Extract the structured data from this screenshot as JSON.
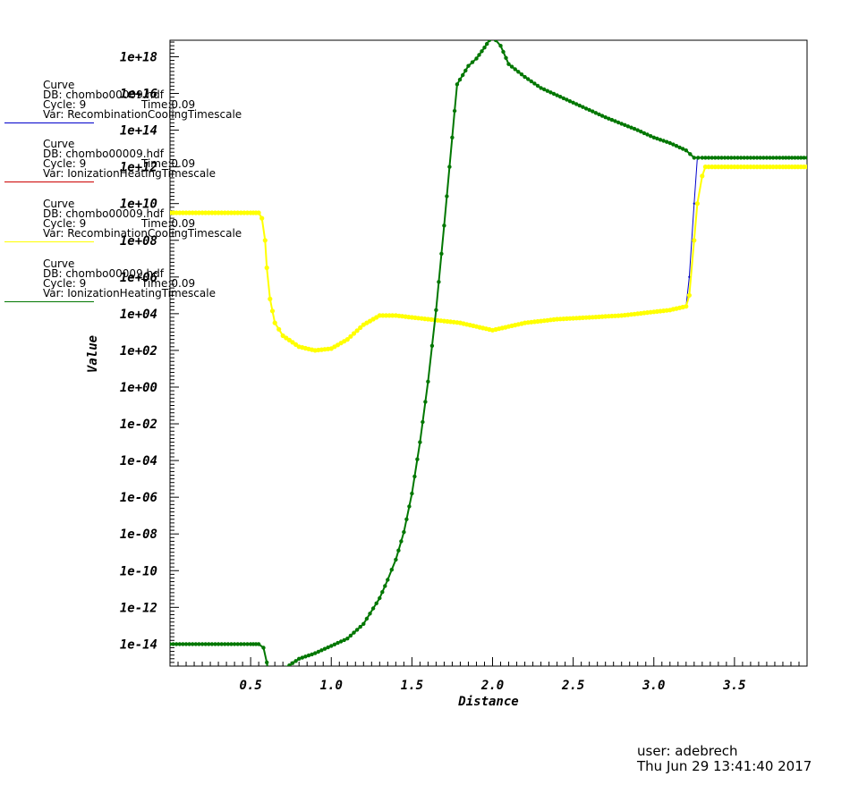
{
  "legend": [
    {
      "title": "Curve",
      "db": "DB: chombo00009.hdf",
      "cycle": "Cycle: 9",
      "time": "Time:0.09",
      "var": "Var: RecombinationCoolingTimescale",
      "color": "#0000cc"
    },
    {
      "title": "Curve",
      "db": "DB: chombo00009.hdf",
      "cycle": "Cycle: 9",
      "time": "Time:0.09",
      "var": "Var: IonizationHeatingTimescale",
      "color": "#cc0000"
    },
    {
      "title": "Curve",
      "db": "DB: chombo00009.hdf",
      "cycle": "Cycle: 9",
      "time": "Time:0.09",
      "var": "Var: RecombinationCoolingTimescale",
      "color": "#ffff00"
    },
    {
      "title": "Curve",
      "db": "DB: chombo00009.hdf",
      "cycle": "Cycle: 9",
      "time": "Time:0.09",
      "var": "Var: IonizationHeatingTimescale",
      "color": "#007700"
    }
  ],
  "footer": {
    "user": "user: adebrech",
    "date": "Thu Jun 29 13:41:40 2017"
  },
  "chart_data": {
    "type": "line",
    "xlabel": "Distance",
    "ylabel": "Value",
    "xlim": [
      0,
      3.95
    ],
    "ylim_log10": [
      -15.2,
      18.9
    ],
    "log_y": true,
    "xticks": [
      "0.5",
      "1.0",
      "1.5",
      "2.0",
      "2.5",
      "3.0",
      "3.5"
    ],
    "yticks": [
      "1e+18",
      "1e+16",
      "1e+14",
      "1e+12",
      "1e+10",
      "1e+08",
      "1e+06",
      "1e+04",
      "1e+02",
      "1e+00",
      "1e-02",
      "1e-04",
      "1e-06",
      "1e-08",
      "1e-10",
      "1e-12",
      "1e-14"
    ],
    "series": [
      {
        "name": "RecombinationCoolingTimescale",
        "color": "#0000cc",
        "x": [
          0.0,
          0.5,
          0.55,
          0.57,
          0.59,
          0.6,
          0.62,
          0.65,
          0.7,
          0.8,
          0.9,
          1.0,
          1.1,
          1.2,
          1.3,
          1.4,
          1.5,
          1.6,
          1.7,
          1.8,
          1.9,
          2.0,
          2.1,
          2.2,
          2.4,
          2.6,
          2.8,
          3.0,
          3.1,
          3.2,
          3.22,
          3.25,
          3.27,
          3.3,
          3.4,
          3.6,
          3.8,
          3.95
        ],
        "y": [
          9.5,
          9.5,
          9.5,
          9.2,
          8.0,
          6.5,
          4.8,
          3.5,
          2.8,
          2.2,
          2.0,
          2.1,
          2.6,
          3.4,
          3.9,
          3.9,
          3.8,
          3.7,
          3.6,
          3.5,
          3.3,
          3.1,
          3.3,
          3.5,
          3.7,
          3.8,
          3.9,
          4.1,
          4.2,
          4.4,
          6.0,
          10.0,
          12.5,
          12.5,
          12.5,
          12.5,
          12.5,
          12.5
        ]
      },
      {
        "name": "IonizationHeatingTimescale",
        "color": "#cc0000",
        "x": [
          0.0,
          0.5,
          0.55,
          0.58,
          0.6,
          0.62,
          0.65,
          0.7,
          0.8,
          0.9,
          1.0,
          1.1,
          1.2,
          1.3,
          1.35,
          1.4,
          1.45,
          1.5,
          1.55,
          1.6,
          1.65,
          1.7,
          1.75,
          1.78,
          1.85,
          1.9,
          1.95,
          1.98,
          2.0,
          2.02,
          2.05,
          2.1,
          2.2,
          2.3,
          2.5,
          2.7,
          2.9,
          3.0,
          3.1,
          3.2,
          3.25,
          3.3,
          3.5,
          3.8,
          3.95
        ],
        "y": [
          -14.0,
          -14.0,
          -14.0,
          -14.2,
          -15.0,
          -16.0,
          -16.0,
          -15.4,
          -14.8,
          -14.5,
          -14.1,
          -13.7,
          -12.9,
          -11.5,
          -10.5,
          -9.4,
          -7.9,
          -5.8,
          -3.0,
          0.3,
          4.2,
          8.8,
          13.6,
          16.5,
          17.5,
          17.9,
          18.5,
          18.9,
          19.0,
          18.9,
          18.6,
          17.6,
          16.9,
          16.3,
          15.5,
          14.7,
          14.0,
          13.6,
          13.3,
          12.9,
          12.5,
          12.5,
          12.5,
          12.5,
          12.5
        ]
      },
      {
        "name": "RecombinationCoolingTimescale",
        "color": "#ffff00",
        "x": [
          0.0,
          0.5,
          0.55,
          0.57,
          0.59,
          0.6,
          0.62,
          0.65,
          0.7,
          0.8,
          0.9,
          1.0,
          1.1,
          1.2,
          1.3,
          1.4,
          1.5,
          1.6,
          1.7,
          1.8,
          1.9,
          2.0,
          2.1,
          2.2,
          2.4,
          2.6,
          2.8,
          3.0,
          3.1,
          3.2,
          3.22,
          3.25,
          3.27,
          3.3,
          3.32,
          3.4,
          3.6,
          3.8,
          3.95
        ],
        "y": [
          9.5,
          9.5,
          9.5,
          9.2,
          8.0,
          6.5,
          4.8,
          3.5,
          2.8,
          2.2,
          2.0,
          2.1,
          2.6,
          3.4,
          3.9,
          3.9,
          3.8,
          3.7,
          3.6,
          3.5,
          3.3,
          3.1,
          3.3,
          3.5,
          3.7,
          3.8,
          3.9,
          4.1,
          4.2,
          4.4,
          5.0,
          8.0,
          10.0,
          11.5,
          12.0,
          12.0,
          12.0,
          12.0,
          12.0
        ]
      },
      {
        "name": "IonizationHeatingTimescale",
        "color": "#007700",
        "x": [
          0.0,
          0.5,
          0.55,
          0.58,
          0.6,
          0.62,
          0.65,
          0.7,
          0.8,
          0.9,
          1.0,
          1.1,
          1.2,
          1.3,
          1.35,
          1.4,
          1.45,
          1.5,
          1.55,
          1.6,
          1.65,
          1.7,
          1.75,
          1.78,
          1.85,
          1.9,
          1.95,
          1.98,
          2.0,
          2.02,
          2.05,
          2.1,
          2.2,
          2.3,
          2.5,
          2.7,
          2.9,
          3.0,
          3.1,
          3.2,
          3.25,
          3.3,
          3.5,
          3.8,
          3.95
        ],
        "y": [
          -14.0,
          -14.0,
          -14.0,
          -14.2,
          -15.0,
          -16.0,
          -16.0,
          -15.4,
          -14.8,
          -14.5,
          -14.1,
          -13.7,
          -12.9,
          -11.5,
          -10.5,
          -9.4,
          -7.9,
          -5.8,
          -3.0,
          0.3,
          4.2,
          8.8,
          13.6,
          16.5,
          17.5,
          17.9,
          18.5,
          18.9,
          19.0,
          18.9,
          18.6,
          17.6,
          16.9,
          16.3,
          15.5,
          14.7,
          14.0,
          13.6,
          13.3,
          12.9,
          12.5,
          12.5,
          12.5,
          12.5,
          12.5
        ]
      }
    ]
  }
}
